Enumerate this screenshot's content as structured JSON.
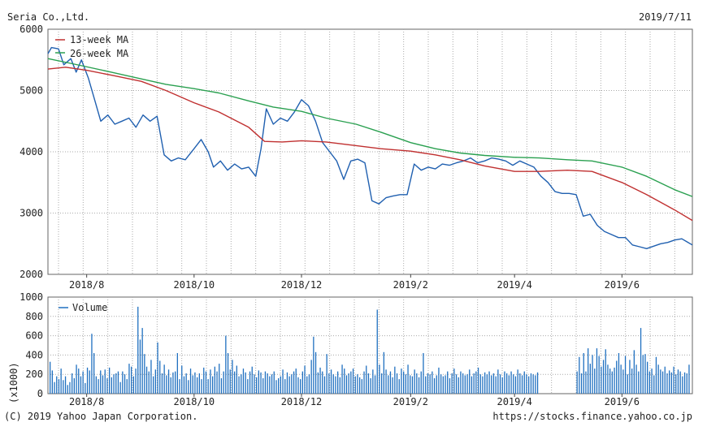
{
  "header": {
    "company": "Seria Co.,Ltd.",
    "date": "2019/7/11"
  },
  "footer": {
    "copyright": "(C) 2019 Yahoo Japan Corporation.",
    "url": "https://stocks.finance.yahoo.co.jp"
  },
  "colors": {
    "price": "#2060b0",
    "ma13": "#c03030",
    "ma26": "#2aa050",
    "volume": "#2070c0",
    "grid": "#aaaaaa"
  },
  "chart_data": [
    {
      "type": "line",
      "title": "Seria Co.,Ltd.",
      "xlabel": "",
      "ylabel": "",
      "xlim": [
        "2018-07-10",
        "2019-07-11"
      ],
      "ylim": [
        2000,
        6000
      ],
      "y_ticks": [
        6000,
        5000,
        4000,
        3000,
        2000
      ],
      "x_ticks": [
        {
          "date": "2018-08-01",
          "label": "2018/8"
        },
        {
          "date": "2018-10-01",
          "label": "2018/10"
        },
        {
          "date": "2018-12-01",
          "label": "2018/12"
        },
        {
          "date": "2019-02-01",
          "label": "2019/2"
        },
        {
          "date": "2019-04-01",
          "label": "2019/4"
        },
        {
          "date": "2019-06-01",
          "label": "2019/6"
        }
      ],
      "grid": true,
      "legend_position": "top-left",
      "series": [
        {
          "name": "",
          "points": [
            [
              "2018-07-10",
              5600
            ],
            [
              "2018-07-12",
              5700
            ],
            [
              "2018-07-16",
              5680
            ],
            [
              "2018-07-19",
              5420
            ],
            [
              "2018-07-23",
              5520
            ],
            [
              "2018-07-26",
              5300
            ],
            [
              "2018-07-29",
              5500
            ],
            [
              "2018-08-02",
              5200
            ],
            [
              "2018-08-06",
              4800
            ],
            [
              "2018-08-09",
              4500
            ],
            [
              "2018-08-13",
              4600
            ],
            [
              "2018-08-17",
              4450
            ],
            [
              "2018-08-21",
              4500
            ],
            [
              "2018-08-25",
              4550
            ],
            [
              "2018-08-29",
              4400
            ],
            [
              "2018-09-02",
              4600
            ],
            [
              "2018-09-06",
              4500
            ],
            [
              "2018-09-10",
              4580
            ],
            [
              "2018-09-14",
              3950
            ],
            [
              "2018-09-18",
              3850
            ],
            [
              "2018-09-22",
              3900
            ],
            [
              "2018-09-26",
              3870
            ],
            [
              "2018-10-01",
              4050
            ],
            [
              "2018-10-05",
              4200
            ],
            [
              "2018-10-09",
              4000
            ],
            [
              "2018-10-12",
              3750
            ],
            [
              "2018-10-16",
              3850
            ],
            [
              "2018-10-20",
              3700
            ],
            [
              "2018-10-24",
              3800
            ],
            [
              "2018-10-28",
              3720
            ],
            [
              "2018-11-01",
              3750
            ],
            [
              "2018-11-05",
              3600
            ],
            [
              "2018-11-08",
              4050
            ],
            [
              "2018-11-11",
              4700
            ],
            [
              "2018-11-15",
              4450
            ],
            [
              "2018-11-19",
              4550
            ],
            [
              "2018-11-23",
              4500
            ],
            [
              "2018-11-27",
              4650
            ],
            [
              "2018-12-01",
              4850
            ],
            [
              "2018-12-05",
              4750
            ],
            [
              "2018-12-09",
              4500
            ],
            [
              "2018-12-13",
              4150
            ],
            [
              "2018-12-17",
              4000
            ],
            [
              "2018-12-21",
              3850
            ],
            [
              "2018-12-25",
              3550
            ],
            [
              "2018-12-29",
              3850
            ],
            [
              "2019-01-02",
              3880
            ],
            [
              "2019-01-06",
              3820
            ],
            [
              "2019-01-10",
              3200
            ],
            [
              "2019-01-14",
              3150
            ],
            [
              "2019-01-18",
              3250
            ],
            [
              "2019-01-22",
              3280
            ],
            [
              "2019-01-26",
              3300
            ],
            [
              "2019-01-30",
              3300
            ],
            [
              "2019-02-03",
              3800
            ],
            [
              "2019-02-07",
              3700
            ],
            [
              "2019-02-11",
              3750
            ],
            [
              "2019-02-15",
              3720
            ],
            [
              "2019-02-19",
              3800
            ],
            [
              "2019-02-23",
              3780
            ],
            [
              "2019-02-27",
              3820
            ],
            [
              "2019-03-03",
              3850
            ],
            [
              "2019-03-07",
              3900
            ],
            [
              "2019-03-11",
              3820
            ],
            [
              "2019-03-15",
              3850
            ],
            [
              "2019-03-19",
              3900
            ],
            [
              "2019-03-23",
              3880
            ],
            [
              "2019-03-27",
              3850
            ],
            [
              "2019-03-31",
              3780
            ],
            [
              "2019-04-04",
              3850
            ],
            [
              "2019-04-08",
              3800
            ],
            [
              "2019-04-12",
              3750
            ],
            [
              "2019-04-16",
              3600
            ],
            [
              "2019-04-20",
              3500
            ],
            [
              "2019-04-24",
              3350
            ],
            [
              "2019-04-28",
              3320
            ],
            [
              "2019-05-02",
              3320
            ],
            [
              "2019-05-06",
              3300
            ],
            [
              "2019-05-10",
              2950
            ],
            [
              "2019-05-14",
              2980
            ],
            [
              "2019-05-18",
              2800
            ],
            [
              "2019-05-22",
              2700
            ],
            [
              "2019-05-26",
              2650
            ],
            [
              "2019-05-30",
              2600
            ],
            [
              "2019-06-03",
              2600
            ],
            [
              "2019-06-07",
              2480
            ],
            [
              "2019-06-11",
              2450
            ],
            [
              "2019-06-15",
              2420
            ],
            [
              "2019-06-19",
              2460
            ],
            [
              "2019-06-23",
              2500
            ],
            [
              "2019-06-27",
              2520
            ],
            [
              "2019-07-01",
              2560
            ],
            [
              "2019-07-05",
              2580
            ],
            [
              "2019-07-08",
              2530
            ],
            [
              "2019-07-11",
              2480
            ]
          ]
        },
        {
          "name": "13-week MA",
          "points": [
            [
              "2018-07-10",
              5350
            ],
            [
              "2018-07-20",
              5380
            ],
            [
              "2018-08-01",
              5330
            ],
            [
              "2018-08-15",
              5250
            ],
            [
              "2018-09-01",
              5150
            ],
            [
              "2018-09-15",
              5000
            ],
            [
              "2018-10-01",
              4800
            ],
            [
              "2018-10-15",
              4650
            ],
            [
              "2018-11-01",
              4400
            ],
            [
              "2018-11-10",
              4170
            ],
            [
              "2018-11-20",
              4160
            ],
            [
              "2018-12-01",
              4180
            ],
            [
              "2018-12-15",
              4160
            ],
            [
              "2019-01-01",
              4100
            ],
            [
              "2019-01-15",
              4050
            ],
            [
              "2019-02-01",
              4010
            ],
            [
              "2019-02-15",
              3950
            ],
            [
              "2019-03-01",
              3870
            ],
            [
              "2019-03-15",
              3770
            ],
            [
              "2019-04-01",
              3680
            ],
            [
              "2019-04-15",
              3680
            ],
            [
              "2019-05-01",
              3700
            ],
            [
              "2019-05-15",
              3680
            ],
            [
              "2019-06-01",
              3500
            ],
            [
              "2019-06-15",
              3300
            ],
            [
              "2019-07-01",
              3050
            ],
            [
              "2019-07-11",
              2880
            ]
          ]
        },
        {
          "name": "26-week MA",
          "points": [
            [
              "2018-07-10",
              5520
            ],
            [
              "2018-07-25",
              5430
            ],
            [
              "2018-08-15",
              5300
            ],
            [
              "2018-09-01",
              5190
            ],
            [
              "2018-09-15",
              5100
            ],
            [
              "2018-10-01",
              5030
            ],
            [
              "2018-10-15",
              4960
            ],
            [
              "2018-11-01",
              4830
            ],
            [
              "2018-11-15",
              4730
            ],
            [
              "2018-12-01",
              4660
            ],
            [
              "2018-12-15",
              4550
            ],
            [
              "2019-01-01",
              4450
            ],
            [
              "2019-01-15",
              4320
            ],
            [
              "2019-02-01",
              4150
            ],
            [
              "2019-02-15",
              4050
            ],
            [
              "2019-03-01",
              3980
            ],
            [
              "2019-03-15",
              3940
            ],
            [
              "2019-04-01",
              3910
            ],
            [
              "2019-04-15",
              3900
            ],
            [
              "2019-05-01",
              3870
            ],
            [
              "2019-05-15",
              3850
            ],
            [
              "2019-06-01",
              3750
            ],
            [
              "2019-06-15",
              3600
            ],
            [
              "2019-07-01",
              3380
            ],
            [
              "2019-07-11",
              3270
            ]
          ]
        }
      ]
    },
    {
      "type": "bar",
      "xlabel": "",
      "ylabel": "(x1000)",
      "xlim": [
        "2018-07-10",
        "2019-07-11"
      ],
      "ylim": [
        0,
        1000
      ],
      "y_ticks": [
        1000,
        800,
        600,
        400,
        200,
        0
      ],
      "x_ticks": [
        {
          "date": "2018-08-01",
          "label": "2018/8"
        },
        {
          "date": "2018-10-01",
          "label": "2018/10"
        },
        {
          "date": "2018-12-01",
          "label": "2018/12"
        },
        {
          "date": "2019-02-01",
          "label": "2019/2"
        },
        {
          "date": "2019-04-01",
          "label": "2019/4"
        },
        {
          "date": "2019-06-01",
          "label": "2019/6"
        }
      ],
      "grid": true,
      "legend_position": "top-left",
      "series": [
        {
          "name": "Volume",
          "start_date": "2018-07-10",
          "values": [
            330,
            240,
            120,
            180,
            150,
            260,
            140,
            180,
            90,
            120,
            210,
            160,
            300,
            260,
            180,
            230,
            110,
            270,
            240,
            620,
            420,
            180,
            150,
            240,
            190,
            250,
            160,
            270,
            170,
            200,
            210,
            230,
            120,
            230,
            200,
            150,
            310,
            280,
            180,
            260,
            900,
            560,
            680,
            410,
            280,
            230,
            350,
            180,
            250,
            530,
            340,
            210,
            300,
            190,
            250,
            170,
            220,
            230,
            420,
            150,
            290,
            180,
            210,
            140,
            260,
            190,
            220,
            170,
            210,
            150,
            270,
            230,
            150,
            250,
            180,
            280,
            230,
            310,
            160,
            230,
            600,
            420,
            250,
            350,
            230,
            290,
            180,
            200,
            260,
            220,
            150,
            230,
            280,
            200,
            170,
            240,
            220,
            160,
            230,
            210,
            180,
            200,
            230,
            140,
            160,
            180,
            250,
            150,
            220,
            180,
            200,
            230,
            260,
            170,
            150,
            230,
            290,
            180,
            200,
            350,
            590,
            430,
            220,
            270,
            230,
            180,
            410,
            210,
            250,
            200,
            180,
            230,
            170,
            300,
            260,
            190,
            210,
            230,
            260,
            180,
            200,
            170,
            150,
            230,
            290,
            210,
            160,
            250,
            190,
            870,
            300,
            210,
            430,
            250,
            190,
            230,
            170,
            280,
            210,
            150,
            260,
            230,
            200,
            300,
            190,
            180,
            250,
            210,
            170,
            230,
            420,
            180,
            210,
            200,
            230,
            160,
            190,
            270,
            200,
            180,
            190,
            230,
            160,
            210,
            260,
            200,
            170,
            230,
            210,
            190,
            200,
            250,
            180,
            210,
            230,
            270,
            200,
            180,
            220,
            200,
            230,
            190,
            210,
            180,
            250,
            200,
            170,
            230,
            210,
            190,
            230,
            200,
            180,
            250,
            210,
            190,
            230,
            200,
            180,
            210,
            200,
            190,
            220,
            0,
            0,
            0,
            0,
            0,
            0,
            0,
            0,
            0,
            0,
            0,
            0,
            0,
            0,
            0,
            0,
            0,
            230,
            380,
            210,
            420,
            230,
            470,
            310,
            400,
            260,
            470,
            390,
            280,
            350,
            460,
            300,
            260,
            230,
            270,
            340,
            420,
            300,
            250,
            390,
            200,
            350,
            260,
            450,
            300,
            230,
            680,
            400,
            410,
            330,
            230,
            260,
            190,
            380,
            300,
            250,
            230,
            280,
            210,
            240,
            220,
            280,
            200,
            250,
            230,
            180,
            220,
            210,
            300
          ]
        }
      ]
    }
  ]
}
